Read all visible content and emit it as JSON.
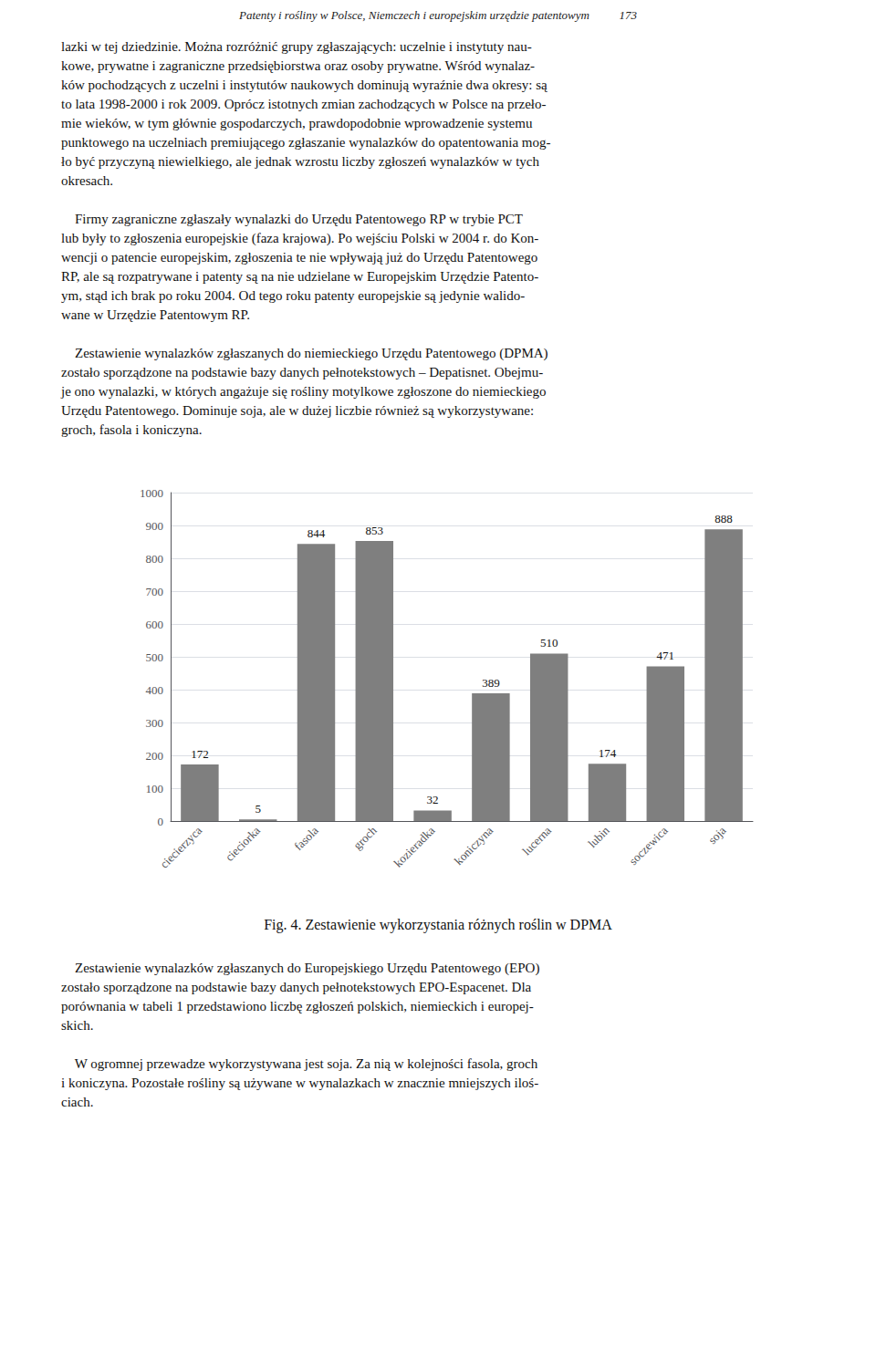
{
  "chart_data": {
    "type": "bar",
    "title": "Fig. 4. Zestawienie wykorzystania różnych roślin w DPMA",
    "categories": [
      "ciecierzyca",
      "cieciorka",
      "fasola",
      "groch",
      "kozieradka",
      "koniczyna",
      "lucerna",
      "lubin",
      "soczewica",
      "soja"
    ],
    "values": [
      172,
      5,
      844,
      853,
      32,
      389,
      510,
      174,
      471,
      888
    ],
    "color": "#7f7f7f",
    "ylim": [
      0,
      1000
    ],
    "yticks": [
      0,
      100,
      200,
      300,
      400,
      500,
      600,
      700,
      800,
      900,
      1000
    ],
    "grid": true,
    "data_labels": true,
    "annotations": [
      "Patenty i rośliny w Polsce, Niemczech i europejskim urzędzie patentowym          173",
      "lazki w tej dziedzinie. Można rozróżnić grupy zgłaszających: uczelnie i instytuty nau-\nkowe, prywatne i zagraniczne przedsiębiorstwa oraz osoby prywatne. Wśród wynalaz-\nków pochodzących z uczelni i instytutów naukowych dominują wyraźnie dwa okresy: są\nto lata 1998-2000 i rok 2009. Oprócz istotnych zmian zachodzących w Polsce na przeło-\nmie wieków, w tym głównie gospodarczych, prawdopodobnie wprowadzenie systemu\npunktowego na uczelniach premiującego zgłaszanie wynalazków do opatentowania mog-\nło być przyczyną niewielkiego, ale jednak wzrostu liczby zgłoszeń wynalazków w tych\nokresach.\n\n    Firmy zagraniczne zgłaszały wynalazki do Urzędu Patentowego RP w trybie PCT\nlub były to zgłoszenia europejskie (faza krajowa). Po wejściu Polski w 2004 r. do Kon-\nwencji o patencie europejskim, zgłoszenia te nie wpływają już do Urzędu Patentowego\nRP, ale są rozpatrywane i patenty są na nie udzielane w Europejskim Urzędzie Patento-\nym, stąd ich brak po roku 2004. Od tego roku patenty europejskie są jedynie walido-\nwane w Urzędzie Patentowym RP.\n\n    Zestawienie wynalazków zgłaszanych do niemieckiego Urzędu Patentowego (DPMA)\nzostało sporządzone na podstawie bazy danych pełnotekstowych – Depatisnet. Obejmu-\nje ono wynalazki, w których angażuje się rośliny motylkowe zgłoszone do niemieckiego\nUrzędu Patentowego. Dominuje soja, ale w dużej liczbie również są wykorzystywane:\ngroch, fasola i koniczyna.",
      "    Zestawienie wynalazków zgłaszanych do Europejskiego Urzędu Patentowego (EPO)\nzostało sporządzone na podstawie bazy danych pełnotekstowych EPO-Espacenet. Dla\nporównania w tabeli 1 przedstawiono liczbę zgłoszeń polskich, niemieckich i europej-\nskich.\n\n    W ogromnej przewadze wykorzystywana jest soja. Za nią w kolejności fasola, groch\ni koniczyna. Pozostałe rośliny są używane w wynalazkach w znacznie mniejszych iloś-\nciach."
    ]
  }
}
